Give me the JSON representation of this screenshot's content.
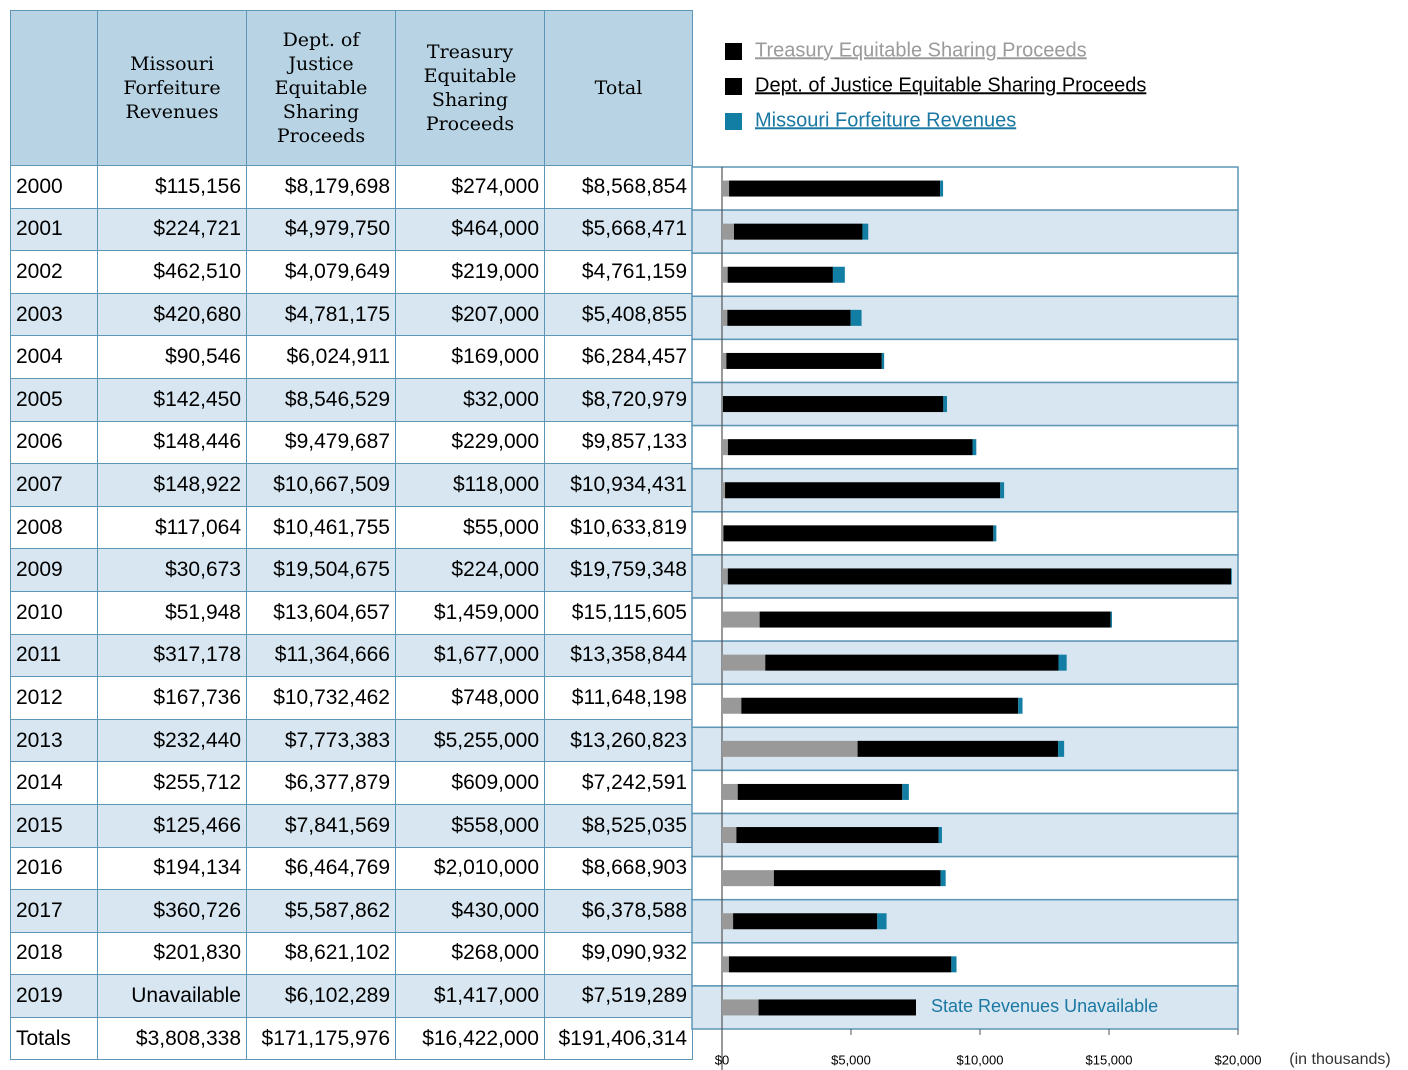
{
  "table": {
    "headers": [
      "Missouri Forfeiture Revenues",
      "Dept. of Justice Equitable Sharing Proceeds",
      "Treasury Equitable Sharing Proceeds",
      "Total"
    ],
    "rows": [
      [
        "2000",
        "$115,156",
        "$8,179,698",
        "$274,000",
        "$8,568,854"
      ],
      [
        "2001",
        "$224,721",
        "$4,979,750",
        "$464,000",
        "$5,668,471"
      ],
      [
        "2002",
        "$462,510",
        "$4,079,649",
        "$219,000",
        "$4,761,159"
      ],
      [
        "2003",
        "$420,680",
        "$4,781,175",
        "$207,000",
        "$5,408,855"
      ],
      [
        "2004",
        "$90,546",
        "$6,024,911",
        "$169,000",
        "$6,284,457"
      ],
      [
        "2005",
        "$142,450",
        "$8,546,529",
        "$32,000",
        "$8,720,979"
      ],
      [
        "2006",
        "$148,446",
        "$9,479,687",
        "$229,000",
        "$9,857,133"
      ],
      [
        "2007",
        "$148,922",
        "$10,667,509",
        "$118,000",
        "$10,934,431"
      ],
      [
        "2008",
        "$117,064",
        "$10,461,755",
        "$55,000",
        "$10,633,819"
      ],
      [
        "2009",
        "$30,673",
        "$19,504,675",
        "$224,000",
        "$19,759,348"
      ],
      [
        "2010",
        "$51,948",
        "$13,604,657",
        "$1,459,000",
        "$15,115,605"
      ],
      [
        "2011",
        "$317,178",
        "$11,364,666",
        "$1,677,000",
        "$13,358,844"
      ],
      [
        "2012",
        "$167,736",
        "$10,732,462",
        "$748,000",
        "$11,648,198"
      ],
      [
        "2013",
        "$232,440",
        "$7,773,383",
        "$5,255,000",
        "$13,260,823"
      ],
      [
        "2014",
        "$255,712",
        "$6,377,879",
        "$609,000",
        "$7,242,591"
      ],
      [
        "2015",
        "$125,466",
        "$7,841,569",
        "$558,000",
        "$8,525,035"
      ],
      [
        "2016",
        "$194,134",
        "$6,464,769",
        "$2,010,000",
        "$8,668,903"
      ],
      [
        "2017",
        "$360,726",
        "$5,587,862",
        "$430,000",
        "$6,378,588"
      ],
      [
        "2018",
        "$201,830",
        "$8,621,102",
        "$268,000",
        "$9,090,932"
      ],
      [
        "2019",
        "Unavailable",
        "$6,102,289",
        "$1,417,000",
        "$7,519,289"
      ]
    ],
    "totals": [
      "Totals",
      "$3,808,338",
      "$171,175,976",
      "$16,422,000",
      "$191,406,314"
    ]
  },
  "chart_data": {
    "type": "bar",
    "orientation": "horizontal",
    "stacked": true,
    "series": [
      {
        "name": "Treasury Equitable Sharing Proceeds",
        "color": "#999999",
        "values": [
          274,
          464,
          219,
          207,
          169,
          32,
          229,
          118,
          55,
          224,
          1459,
          1677,
          748,
          5255,
          609,
          558,
          2010,
          430,
          268,
          1417
        ]
      },
      {
        "name": "Dept. of Justice Equitable Sharing Proceeds",
        "color": "#000000",
        "values": [
          8179.698,
          4979.75,
          4079.649,
          4781.175,
          6024.911,
          8546.529,
          9479.687,
          10667.509,
          10461.755,
          19504.675,
          13604.657,
          11364.666,
          10732.462,
          7773.383,
          6377.879,
          7841.569,
          6464.769,
          5587.862,
          8621.102,
          6102.289
        ]
      },
      {
        "name": "Missouri Forfeiture Revenues",
        "color": "#127ea3",
        "values": [
          115.156,
          224.721,
          462.51,
          420.68,
          90.546,
          142.45,
          148.446,
          148.922,
          117.064,
          30.673,
          51.948,
          317.178,
          167.736,
          232.44,
          255.712,
          125.466,
          194.134,
          360.726,
          201.83,
          null
        ]
      }
    ],
    "xlim": [
      0,
      20000
    ],
    "xticks": [
      {
        "value": 0,
        "label": "$0"
      },
      {
        "value": 5000,
        "label": "$5,000"
      },
      {
        "value": 10000,
        "label": "$10,000"
      },
      {
        "value": 15000,
        "label": "$15,000"
      },
      {
        "value": 20000,
        "label": "$20,000"
      }
    ],
    "x_label": "(in thousands)",
    "annotation": "State Revenues Unavailable"
  }
}
